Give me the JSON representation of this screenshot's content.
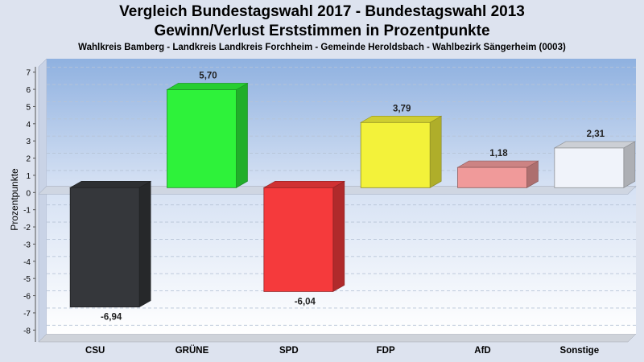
{
  "header": {
    "title_line1": "Vergleich Bundestagswahl 2017 - Bundestagswahl 2013",
    "title_line2": "Gewinn/Verlust Erststimmen in Prozentpunkte",
    "subtitle": "Wahlkreis Bamberg - Landkreis Landkreis Forchheim - Gemeinde Heroldsbach - Wahlbezirk Sängerheim (0003)"
  },
  "chart_data": {
    "type": "bar",
    "title": "Vergleich Bundestagswahl 2017 - Bundestagswahl 2013",
    "subtitle": "Gewinn/Verlust Erststimmen in Prozentpunkte",
    "ylabel": "Prozentpunkte",
    "xlabel": "",
    "categories": [
      "CSU",
      "GRÜNE",
      "SPD",
      "FDP",
      "AfD",
      "Sonstige"
    ],
    "values": [
      -6.94,
      5.7,
      -6.04,
      3.79,
      1.18,
      2.31
    ],
    "value_labels": [
      "-6,94",
      "5,70",
      "-6,04",
      "3,79",
      "1,18",
      "2,31"
    ],
    "yticks": [
      7,
      6,
      5,
      4,
      3,
      2,
      1,
      0,
      -1,
      -2,
      -3,
      -4,
      -5,
      -6,
      -7,
      -8
    ],
    "ylim": [
      -8.5,
      7.5
    ],
    "grid": true,
    "legend": "none",
    "colors": [
      "#35373b",
      "#2ef23a",
      "#f53a3c",
      "#f3f23a",
      "#f09a9a",
      "#f0f3fa"
    ],
    "background_gradient": [
      "#8fb1e0",
      "#ffffff"
    ]
  }
}
